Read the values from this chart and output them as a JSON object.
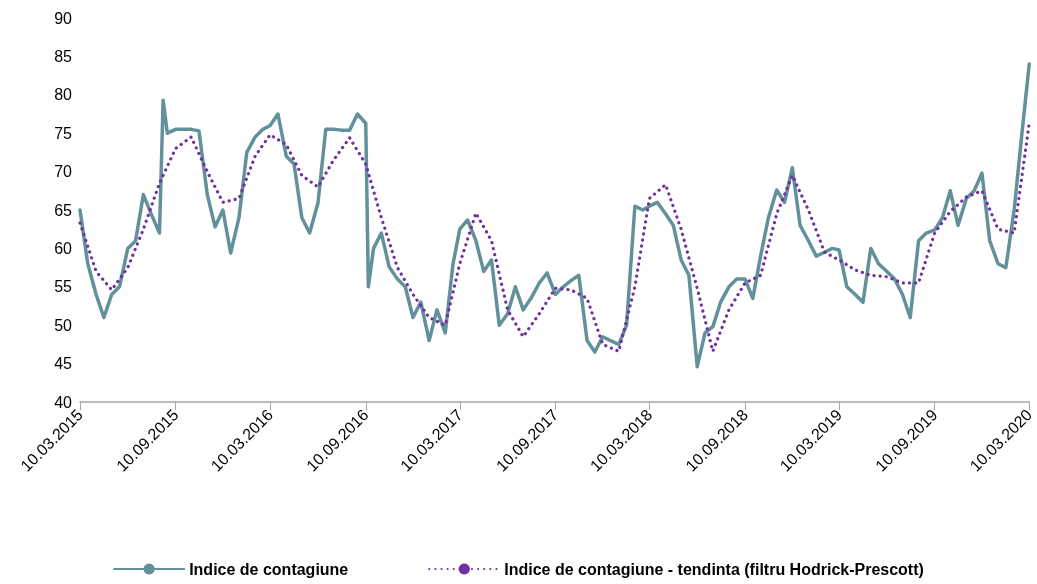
{
  "chart_data": {
    "type": "line",
    "ylim": [
      40,
      90
    ],
    "yticks": [
      40,
      45,
      50,
      55,
      60,
      65,
      70,
      75,
      80,
      85,
      90
    ],
    "xlim": [
      "2015-03-10",
      "2020-03-10"
    ],
    "xticks": [
      {
        "value": "2015-03-10",
        "label": "10.03.2015"
      },
      {
        "value": "2015-09-10",
        "label": "10.09.2015"
      },
      {
        "value": "2016-03-10",
        "label": "10.03.2016"
      },
      {
        "value": "2016-09-10",
        "label": "10.09.2016"
      },
      {
        "value": "2017-03-10",
        "label": "10.03.2017"
      },
      {
        "value": "2017-09-10",
        "label": "10.09.2017"
      },
      {
        "value": "2018-03-10",
        "label": "10.03.2018"
      },
      {
        "value": "2018-09-10",
        "label": "10.09.2018"
      },
      {
        "value": "2019-03-10",
        "label": "10.03.2019"
      },
      {
        "value": "2019-09-10",
        "label": "10.09.2019"
      },
      {
        "value": "2020-03-10",
        "label": "10.03.2020"
      }
    ],
    "grid": false,
    "legend": "bottom",
    "marker": "none",
    "series": [
      {
        "name": "Indice de contagiune",
        "color": "#62909b",
        "line_style": "solid",
        "x": [
          "2015-03-10",
          "2015-03-25",
          "2015-04-10",
          "2015-04-25",
          "2015-05-10",
          "2015-05-25",
          "2015-06-10",
          "2015-06-25",
          "2015-07-10",
          "2015-07-25",
          "2015-08-10",
          "2015-08-17",
          "2015-08-25",
          "2015-09-10",
          "2015-09-25",
          "2015-10-10",
          "2015-10-25",
          "2015-11-10",
          "2015-11-25",
          "2015-12-10",
          "2015-12-25",
          "2016-01-10",
          "2016-01-25",
          "2016-02-10",
          "2016-02-25",
          "2016-03-10",
          "2016-03-25",
          "2016-04-10",
          "2016-04-25",
          "2016-05-10",
          "2016-05-25",
          "2016-06-10",
          "2016-06-25",
          "2016-07-10",
          "2016-07-25",
          "2016-08-10",
          "2016-08-25",
          "2016-09-10",
          "2016-09-15",
          "2016-09-25",
          "2016-10-10",
          "2016-10-25",
          "2016-11-10",
          "2016-11-25",
          "2016-12-10",
          "2016-12-25",
          "2017-01-10",
          "2017-01-25",
          "2017-02-10",
          "2017-02-25",
          "2017-03-10",
          "2017-03-25",
          "2017-04-10",
          "2017-04-25",
          "2017-05-10",
          "2017-05-25",
          "2017-06-10",
          "2017-06-25",
          "2017-07-10",
          "2017-07-25",
          "2017-08-10",
          "2017-08-25",
          "2017-09-10",
          "2017-09-25",
          "2017-10-10",
          "2017-10-25",
          "2017-11-10",
          "2017-11-25",
          "2017-12-10",
          "2017-12-25",
          "2018-01-10",
          "2018-01-25",
          "2018-02-10",
          "2018-02-25",
          "2018-03-10",
          "2018-03-25",
          "2018-04-10",
          "2018-04-25",
          "2018-05-10",
          "2018-05-25",
          "2018-06-10",
          "2018-06-25",
          "2018-07-10",
          "2018-07-25",
          "2018-08-10",
          "2018-08-25",
          "2018-09-10",
          "2018-09-25",
          "2018-10-10",
          "2018-10-25",
          "2018-11-10",
          "2018-11-25",
          "2018-12-10",
          "2018-12-25",
          "2019-01-10",
          "2019-01-25",
          "2019-02-10",
          "2019-02-25",
          "2019-03-10",
          "2019-03-25",
          "2019-04-10",
          "2019-04-25",
          "2019-05-10",
          "2019-05-25",
          "2019-06-10",
          "2019-06-25",
          "2019-07-10",
          "2019-07-25",
          "2019-08-10",
          "2019-08-25",
          "2019-09-10",
          "2019-09-25",
          "2019-10-10",
          "2019-10-25",
          "2019-11-10",
          "2019-11-25",
          "2019-12-10",
          "2019-12-25",
          "2020-01-10",
          "2020-01-25",
          "2020-02-10",
          "2020-02-25",
          "2020-03-10"
        ],
        "values": [
          65,
          58,
          54,
          51,
          54,
          55,
          60,
          61,
          67,
          64.5,
          62,
          79.3,
          75,
          75.5,
          75.5,
          75.5,
          75.3,
          67,
          62.8,
          65,
          59.4,
          64,
          72.5,
          74.5,
          75.5,
          76,
          77.5,
          72,
          71,
          64,
          62,
          65.9,
          75.5,
          75.5,
          75.4,
          75.4,
          77.5,
          76.3,
          55,
          60,
          62,
          57.6,
          56,
          55,
          51,
          53,
          48,
          52,
          49,
          58,
          62.5,
          63.7,
          61,
          57,
          58.5,
          50,
          51.5,
          55,
          52,
          53.5,
          55.5,
          56.8,
          54,
          55,
          55.8,
          56.5,
          48,
          46.5,
          48.5,
          48,
          47.5,
          50,
          65.5,
          65,
          65.5,
          66,
          64.5,
          63,
          58.5,
          56.5,
          44.6,
          49,
          49.8,
          53,
          55,
          56,
          56,
          53.5,
          59,
          64,
          67.6,
          66,
          70.5,
          63,
          61,
          59,
          59.5,
          60,
          59.8,
          55,
          54,
          53,
          60,
          58,
          57,
          56,
          54,
          51,
          61,
          62,
          62.4,
          64,
          67.5,
          63,
          66.5,
          67.5,
          69.8,
          61,
          58,
          57.5,
          65,
          75,
          84
        ]
      },
      {
        "name": "Indice de contagiune - tendinta (filtru Hodrick-Prescott)",
        "color": "#7030a0",
        "line_style": "dotted",
        "x": [
          "2015-03-10",
          "2015-04-10",
          "2015-05-10",
          "2015-06-10",
          "2015-07-10",
          "2015-08-10",
          "2015-09-10",
          "2015-10-10",
          "2015-11-10",
          "2015-12-10",
          "2016-01-10",
          "2016-02-10",
          "2016-03-10",
          "2016-04-10",
          "2016-05-10",
          "2016-06-10",
          "2016-07-10",
          "2016-08-10",
          "2016-09-10",
          "2016-10-10",
          "2016-11-10",
          "2016-12-10",
          "2017-01-10",
          "2017-02-10",
          "2017-03-10",
          "2017-04-10",
          "2017-05-10",
          "2017-06-10",
          "2017-07-10",
          "2017-08-10",
          "2017-09-10",
          "2017-10-10",
          "2017-11-10",
          "2017-12-10",
          "2018-01-10",
          "2018-02-10",
          "2018-03-10",
          "2018-04-10",
          "2018-05-10",
          "2018-06-10",
          "2018-07-10",
          "2018-08-10",
          "2018-09-10",
          "2018-10-10",
          "2018-11-10",
          "2018-12-10",
          "2019-01-10",
          "2019-02-10",
          "2019-03-10",
          "2019-04-10",
          "2019-05-10",
          "2019-06-10",
          "2019-07-10",
          "2019-08-10",
          "2019-09-10",
          "2019-10-10",
          "2019-11-10",
          "2019-12-10",
          "2020-01-10",
          "2020-02-10",
          "2020-03-10"
        ],
        "values": [
          63.3,
          57,
          54.6,
          57.5,
          62.5,
          68.5,
          73,
          74.5,
          70,
          66,
          66.5,
          72,
          74.8,
          73.5,
          69.5,
          68,
          71.5,
          74.4,
          71,
          64,
          57.5,
          54,
          51,
          50,
          58,
          64.6,
          61,
          52,
          48.5,
          51.5,
          54.8,
          54.6,
          53.5,
          47.5,
          46.6,
          55,
          66.5,
          68.3,
          62.5,
          54.8,
          46.6,
          52,
          55.5,
          56.5,
          64.5,
          69.5,
          65,
          59.5,
          58.5,
          57.2,
          56.5,
          56.3,
          55.5,
          55.5,
          62,
          64.8,
          66.7,
          67.5,
          62.5,
          62,
          76.3
        ]
      }
    ]
  }
}
